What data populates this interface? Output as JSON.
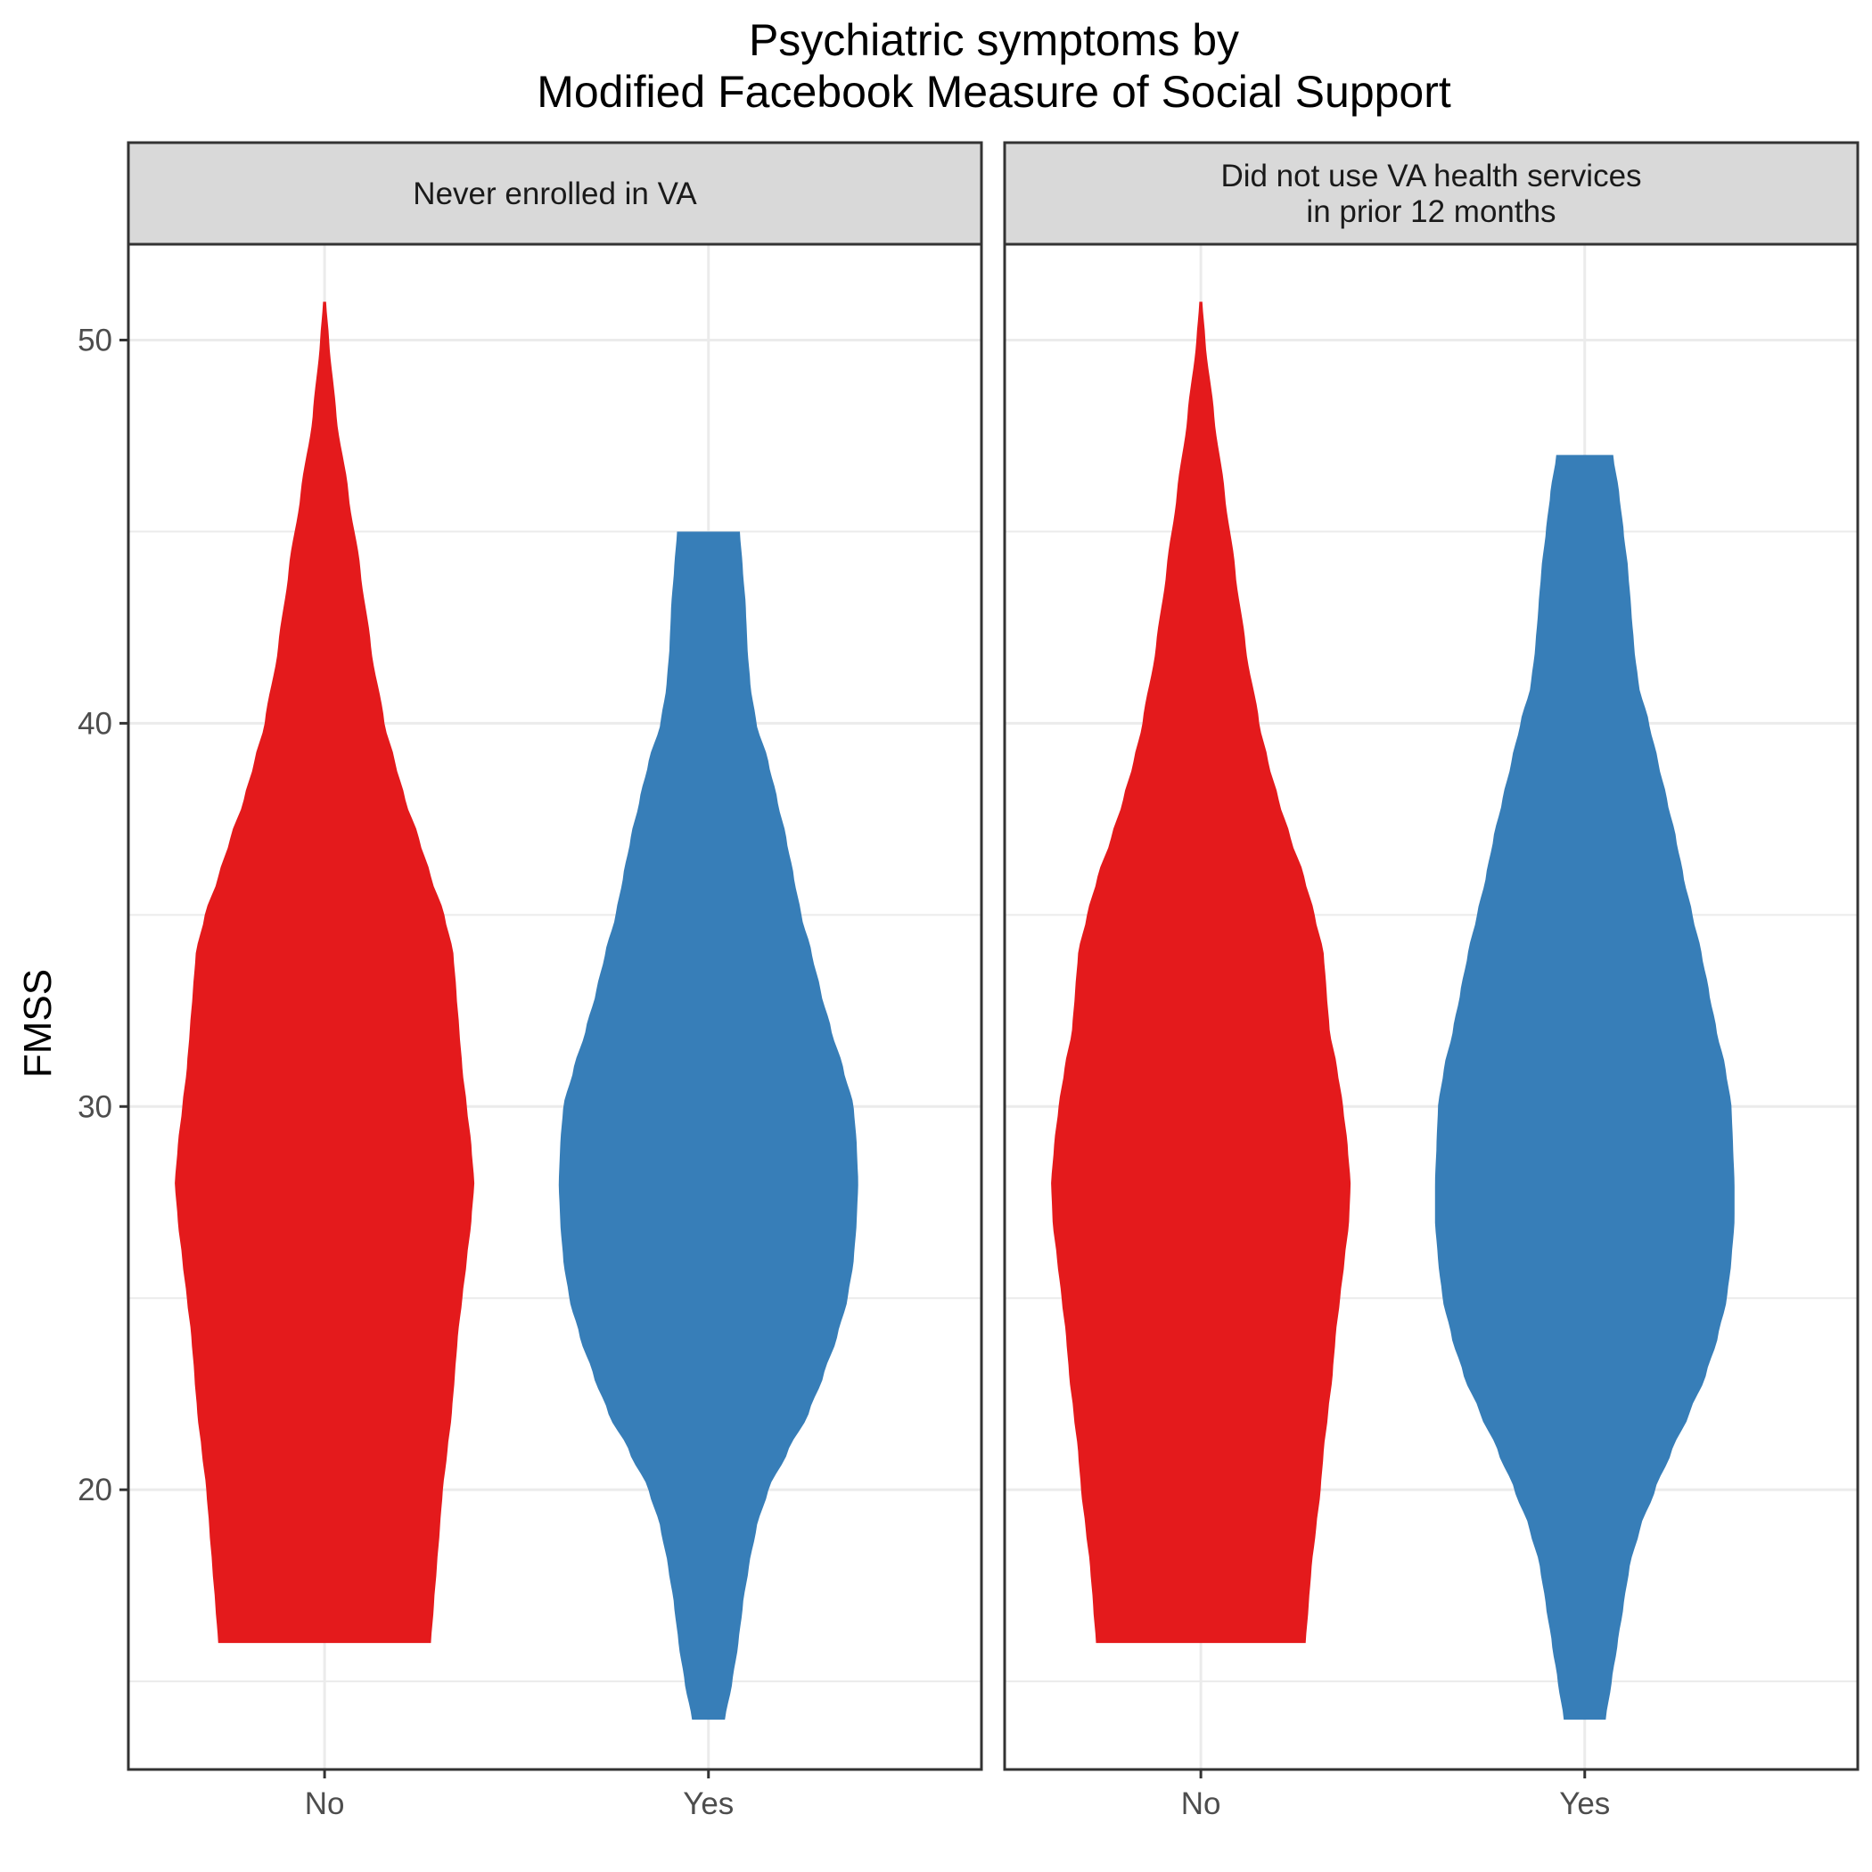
{
  "title": {
    "line1": "Psychiatric symptoms by",
    "line2": "Modified Facebook Measure of Social Support"
  },
  "colors": {
    "No": "#E41A1C",
    "Yes": "#377EB8",
    "panel_border": "#333333",
    "strip_fill": "#D9D9D9",
    "grid": "#EBEBEB"
  },
  "chart_data": {
    "type": "violin",
    "ylabel": "FMSS",
    "xlabel": "",
    "ylim": [
      12.7,
      52.5
    ],
    "y_ticks": [
      20,
      30,
      40,
      50
    ],
    "grid": true,
    "categories": [
      "No",
      "Yes"
    ],
    "panels": [
      {
        "label_lines": [
          "Never enrolled in VA"
        ],
        "violins": [
          {
            "category": "No",
            "min": 16,
            "max": 51,
            "profile": [
              [
                16,
                0.29
              ],
              [
                17,
                0.27
              ],
              [
                18,
                0.25
              ],
              [
                19,
                0.23
              ],
              [
                20,
                0.21
              ],
              [
                21,
                0.18
              ],
              [
                22,
                0.15
              ],
              [
                23,
                0.13
              ],
              [
                24,
                0.11
              ],
              [
                25,
                0.08
              ],
              [
                26,
                0.05
              ],
              [
                27,
                0.02
              ],
              [
                28,
                0.0
              ],
              [
                29,
                0.02
              ],
              [
                30,
                0.05
              ],
              [
                31,
                0.08
              ],
              [
                32,
                0.1
              ],
              [
                33,
                0.12
              ],
              [
                34,
                0.14
              ],
              [
                35,
                0.2
              ],
              [
                36,
                0.29
              ],
              [
                37,
                0.37
              ],
              [
                38,
                0.46
              ],
              [
                39,
                0.53
              ],
              [
                40,
                0.6
              ],
              [
                42,
                0.69
              ],
              [
                44,
                0.76
              ],
              [
                46,
                0.84
              ],
              [
                48,
                0.92
              ],
              [
                50,
                0.97
              ],
              [
                51,
                0.99
              ]
            ]
          },
          {
            "category": "Yes",
            "min": 14,
            "max": 45,
            "profile": [
              [
                14,
                0.89
              ],
              [
                15,
                0.84
              ],
              [
                16,
                0.8
              ],
              [
                17,
                0.77
              ],
              [
                18,
                0.73
              ],
              [
                19,
                0.68
              ],
              [
                20,
                0.6
              ],
              [
                21,
                0.47
              ],
              [
                22,
                0.33
              ],
              [
                23,
                0.23
              ],
              [
                24,
                0.14
              ],
              [
                25,
                0.07
              ],
              [
                26,
                0.03
              ],
              [
                27,
                0.01
              ],
              [
                28,
                0.0
              ],
              [
                29,
                0.01
              ],
              [
                30,
                0.03
              ],
              [
                31,
                0.1
              ],
              [
                32,
                0.18
              ],
              [
                33,
                0.25
              ],
              [
                34,
                0.31
              ],
              [
                35,
                0.38
              ],
              [
                36,
                0.43
              ],
              [
                37,
                0.48
              ],
              [
                38,
                0.54
              ],
              [
                39,
                0.6
              ],
              [
                40,
                0.68
              ],
              [
                41,
                0.72
              ],
              [
                42,
                0.74
              ],
              [
                43,
                0.75
              ],
              [
                44,
                0.77
              ],
              [
                45,
                0.79
              ]
            ]
          }
        ]
      },
      {
        "label_lines": [
          "Did not use VA health services",
          "in prior 12 months"
        ],
        "violins": [
          {
            "category": "No",
            "min": 16,
            "max": 51,
            "profile": [
              [
                16,
                0.3
              ],
              [
                17,
                0.28
              ],
              [
                18,
                0.26
              ],
              [
                19,
                0.23
              ],
              [
                20,
                0.2
              ],
              [
                21,
                0.18
              ],
              [
                22,
                0.15
              ],
              [
                23,
                0.12
              ],
              [
                24,
                0.1
              ],
              [
                25,
                0.07
              ],
              [
                26,
                0.04
              ],
              [
                27,
                0.01
              ],
              [
                28,
                0.0
              ],
              [
                29,
                0.02
              ],
              [
                30,
                0.05
              ],
              [
                31,
                0.09
              ],
              [
                32,
                0.14
              ],
              [
                33,
                0.16
              ],
              [
                34,
                0.18
              ],
              [
                35,
                0.24
              ],
              [
                36,
                0.31
              ],
              [
                37,
                0.4
              ],
              [
                38,
                0.48
              ],
              [
                39,
                0.55
              ],
              [
                40,
                0.61
              ],
              [
                42,
                0.7
              ],
              [
                44,
                0.77
              ],
              [
                46,
                0.84
              ],
              [
                48,
                0.91
              ],
              [
                50,
                0.97
              ],
              [
                51,
                0.99
              ]
            ]
          },
          {
            "category": "Yes",
            "min": 14,
            "max": 47,
            "profile": [
              [
                14,
                0.86
              ],
              [
                15,
                0.82
              ],
              [
                16,
                0.78
              ],
              [
                17,
                0.74
              ],
              [
                18,
                0.7
              ],
              [
                19,
                0.63
              ],
              [
                20,
                0.53
              ],
              [
                21,
                0.42
              ],
              [
                22,
                0.3
              ],
              [
                23,
                0.19
              ],
              [
                24,
                0.11
              ],
              [
                25,
                0.05
              ],
              [
                26,
                0.02
              ],
              [
                27,
                0.0
              ],
              [
                28,
                0.0
              ],
              [
                29,
                0.01
              ],
              [
                30,
                0.02
              ],
              [
                31,
                0.06
              ],
              [
                32,
                0.12
              ],
              [
                33,
                0.17
              ],
              [
                34,
                0.22
              ],
              [
                35,
                0.28
              ],
              [
                36,
                0.34
              ],
              [
                37,
                0.39
              ],
              [
                38,
                0.45
              ],
              [
                39,
                0.51
              ],
              [
                40,
                0.57
              ],
              [
                41,
                0.64
              ],
              [
                42,
                0.67
              ],
              [
                43,
                0.69
              ],
              [
                44,
                0.71
              ],
              [
                45,
                0.74
              ],
              [
                46,
                0.77
              ],
              [
                47,
                0.81
              ]
            ]
          }
        ]
      }
    ]
  }
}
